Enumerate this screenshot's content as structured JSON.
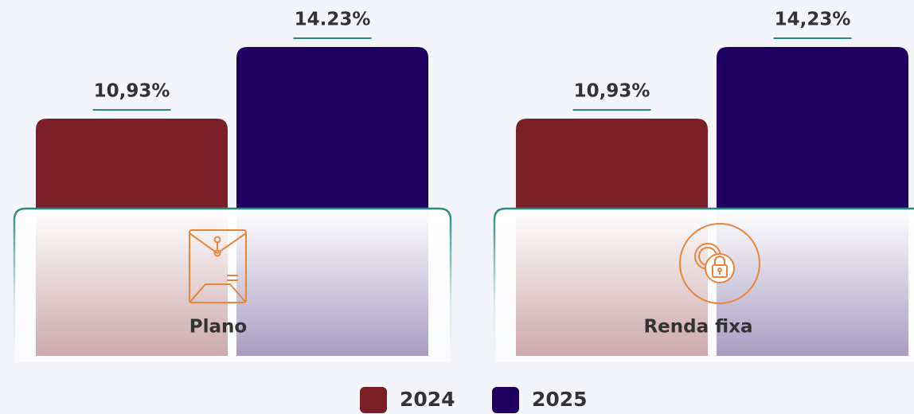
{
  "chart_data": {
    "type": "bar",
    "categories": [
      "Plano",
      "Renda fixa"
    ],
    "series": [
      {
        "name": "2024",
        "color": "#7a1f26",
        "values": [
          10.93,
          10.93
        ],
        "value_labels": [
          "10,93%",
          "10,93%"
        ]
      },
      {
        "name": "2025",
        "color": "#1e0060",
        "values": [
          14.23,
          14.23
        ],
        "value_labels": [
          "14.23%",
          "14,23%"
        ]
      }
    ]
  }
}
